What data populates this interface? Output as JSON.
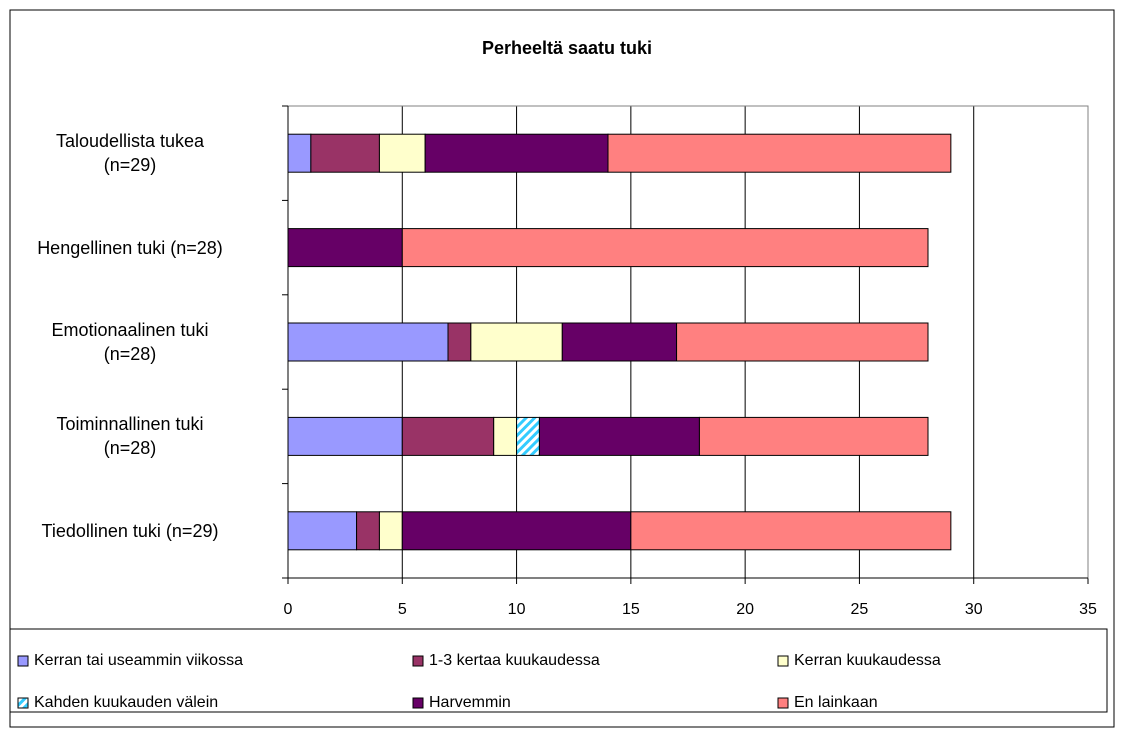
{
  "chart_data": {
    "type": "stacked_bar_horizontal",
    "title": "Perheeltä saatu tuki",
    "categories": [
      "Taloudellista tukea\n(n=29)",
      "Hengellinen tuki (n=28)",
      "Emotionaalinen tuki\n(n=28)",
      "Toiminnallinen tuki\n(n=28)",
      "Tiedollinen tuki (n=29)"
    ],
    "series": [
      {
        "name": "Kerran tai useammin viikossa",
        "color": "#9999ff",
        "values": [
          1,
          0,
          7,
          5,
          3
        ]
      },
      {
        "name": "1-3 kertaa kuukaudessa",
        "color": "#993366",
        "values": [
          3,
          0,
          1,
          4,
          1
        ]
      },
      {
        "name": "Kerran kuukaudessa",
        "color": "#ffffcc",
        "values": [
          2,
          0,
          4,
          1,
          1
        ]
      },
      {
        "name": "Kahden kuukauden välein",
        "color": "#33ccff",
        "values": [
          0,
          0,
          0,
          1,
          0
        ]
      },
      {
        "name": "Harvemmin",
        "color": "#660066",
        "values": [
          8,
          5,
          5,
          7,
          10
        ]
      },
      {
        "name": "En lainkaan",
        "color": "#ff8080",
        "values": [
          15,
          23,
          11,
          10,
          14
        ]
      }
    ],
    "xlim": [
      0,
      35
    ],
    "xticks": [
      0,
      5,
      10,
      15,
      20,
      25,
      30,
      35
    ],
    "grid": true
  }
}
